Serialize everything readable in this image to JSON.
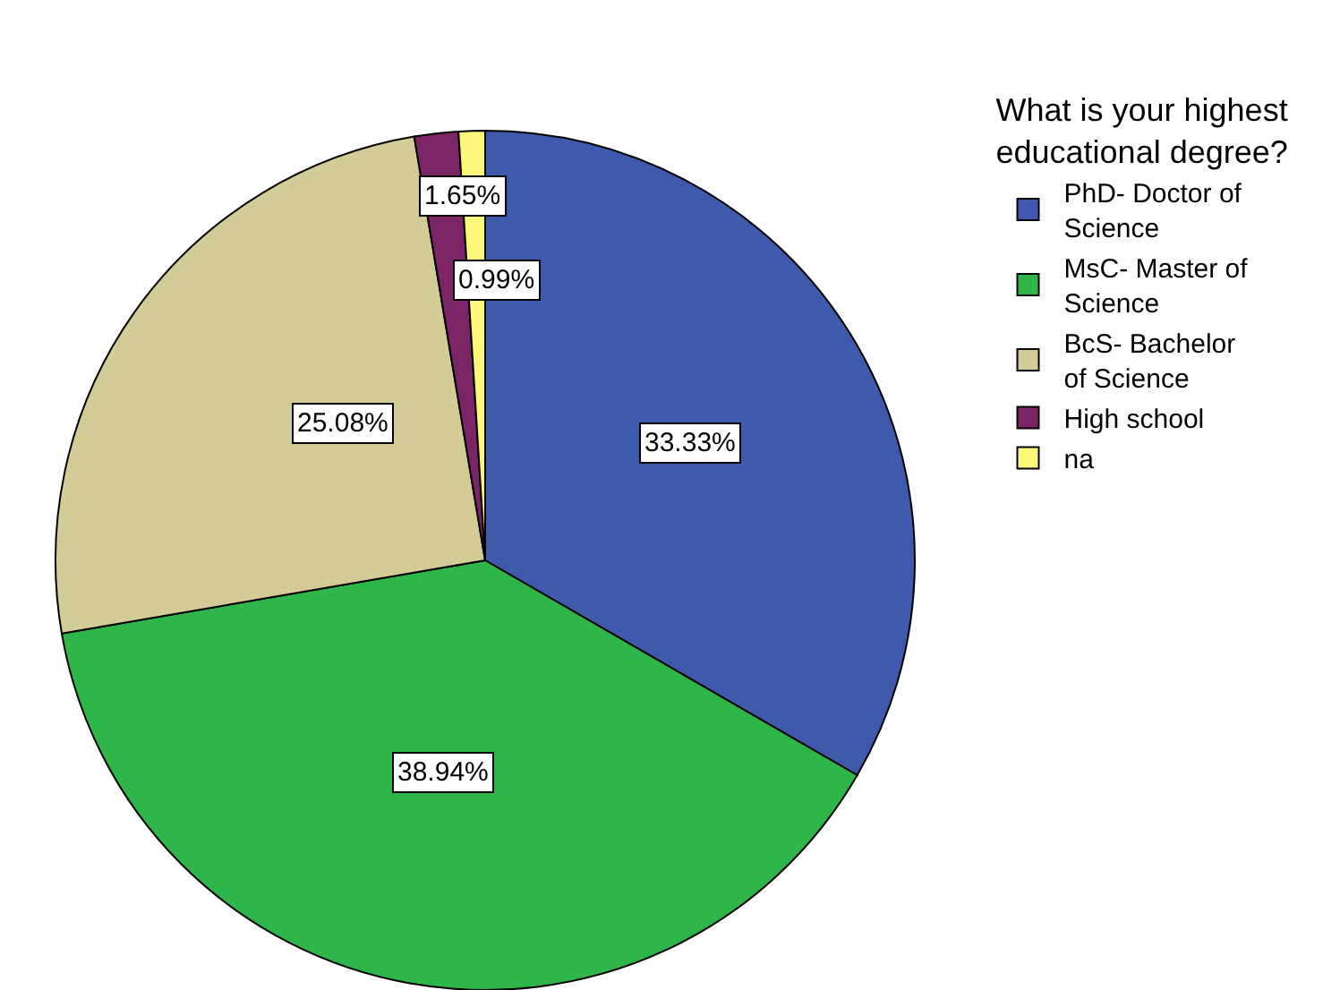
{
  "chart_data": {
    "type": "pie",
    "legend_title": "What is your highest educational degree?",
    "categories": [
      "PhD- Doctor of Science",
      "MsC- Master of Science",
      "BcS- Bachelor of Science",
      "High school",
      "na"
    ],
    "values": [
      33.33,
      38.94,
      25.08,
      1.65,
      0.99
    ],
    "colors": [
      "#3f59ac",
      "#2eb64a",
      "#d4cc96",
      "#7b2466",
      "#fbf87a"
    ],
    "value_labels": [
      "33.33%",
      "38.94%",
      "25.08%",
      "1.65%",
      "0.99%"
    ],
    "legend": "top right"
  }
}
